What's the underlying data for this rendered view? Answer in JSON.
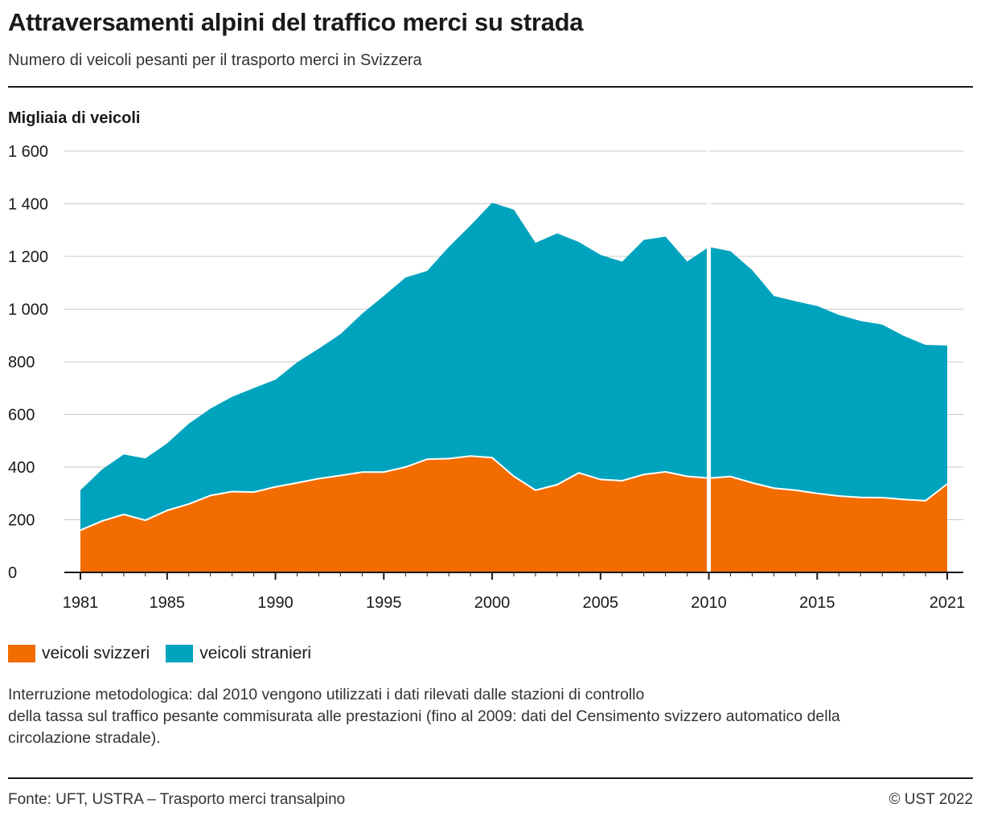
{
  "header": {
    "title": "Attraversamenti alpini del traffico merci su strada",
    "subtitle": "Numero di veicoli pesanti per il trasporto merci in Svizzera"
  },
  "chart_data": {
    "type": "area",
    "stacked": true,
    "ylabel": "Migliaia di veicoli",
    "ylim": [
      0,
      1600
    ],
    "yticks": [
      0,
      200,
      400,
      600,
      800,
      1000,
      1200,
      1400,
      1600
    ],
    "ytick_labels": [
      "0",
      "200",
      "400",
      "600",
      "800",
      "1 000",
      "1 200",
      "1 400",
      "1 600"
    ],
    "xticks": [
      1981,
      1985,
      1990,
      1995,
      2000,
      2005,
      2010,
      2015,
      2021
    ],
    "x": [
      1981,
      1982,
      1983,
      1984,
      1985,
      1986,
      1987,
      1988,
      1989,
      1990,
      1991,
      1992,
      1993,
      1994,
      1995,
      1996,
      1997,
      1998,
      1999,
      2000,
      2001,
      2002,
      2003,
      2004,
      2005,
      2006,
      2007,
      2008,
      2009,
      2010,
      2011,
      2012,
      2013,
      2014,
      2015,
      2016,
      2017,
      2018,
      2019,
      2020,
      2021
    ],
    "series": [
      {
        "name": "veicoli svizzeri",
        "color": "#f26c00",
        "values": [
          160,
          195,
          220,
          198,
          235,
          260,
          292,
          307,
          305,
          325,
          340,
          356,
          368,
          381,
          381,
          400,
          430,
          432,
          442,
          436,
          365,
          312,
          333,
          378,
          353,
          348,
          372,
          382,
          365,
          358,
          364,
          340,
          320,
          312,
          300,
          290,
          285,
          284,
          277,
          272,
          336
        ]
      },
      {
        "name": "veicoli stranieri",
        "color": "#00a3bd",
        "values": [
          152,
          196,
          228,
          235,
          255,
          305,
          330,
          360,
          395,
          407,
          458,
          494,
          537,
          602,
          669,
          720,
          715,
          804,
          876,
          968,
          1013,
          940,
          955,
          877,
          853,
          832,
          891,
          893,
          816,
          878,
          856,
          808,
          730,
          718,
          712,
          688,
          670,
          657,
          621,
          592,
          526
        ]
      }
    ],
    "break_year": 2010,
    "grid": true,
    "legend_position": "bottom-left"
  },
  "legend": {
    "swiss": {
      "label": "veicoli svizzeri",
      "color": "#f26c00"
    },
    "foreign": {
      "label": "veicoli stranieri",
      "color": "#00a3bd"
    }
  },
  "note": {
    "line1": "Interruzione metodologica: dal 2010 vengono utilizzati i dati rilevati dalle stazioni di controllo",
    "line2": "della tassa sul traffico pesante commisurata alle prestazioni (fino al 2009: dati del Censimento svizzero automatico della",
    "line3": "circolazione stradale)."
  },
  "footer": {
    "source": "Fonte: UFT, USTRA – Trasporto merci transalpino",
    "copyright": "© UST 2022"
  }
}
